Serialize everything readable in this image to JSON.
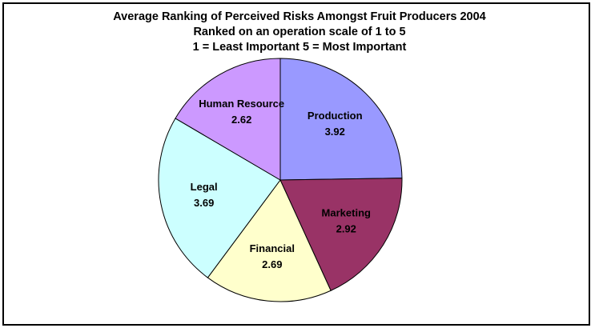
{
  "chart_data": {
    "type": "pie",
    "title": "Average Ranking of Perceived Risks  Amongst Fruit Producers 2004",
    "subtitle": [
      "Ranked on an operation scale of 1 to 5",
      "1 = Least Important  5 = Most Important"
    ],
    "categories": [
      "Production",
      "Marketing",
      "Financial",
      "Legal",
      "Human Resource"
    ],
    "values": [
      3.92,
      2.92,
      2.69,
      3.69,
      2.62
    ],
    "colors": [
      "#9999ff",
      "#993366",
      "#ffffcc",
      "#ccffff",
      "#cc99ff"
    ]
  }
}
